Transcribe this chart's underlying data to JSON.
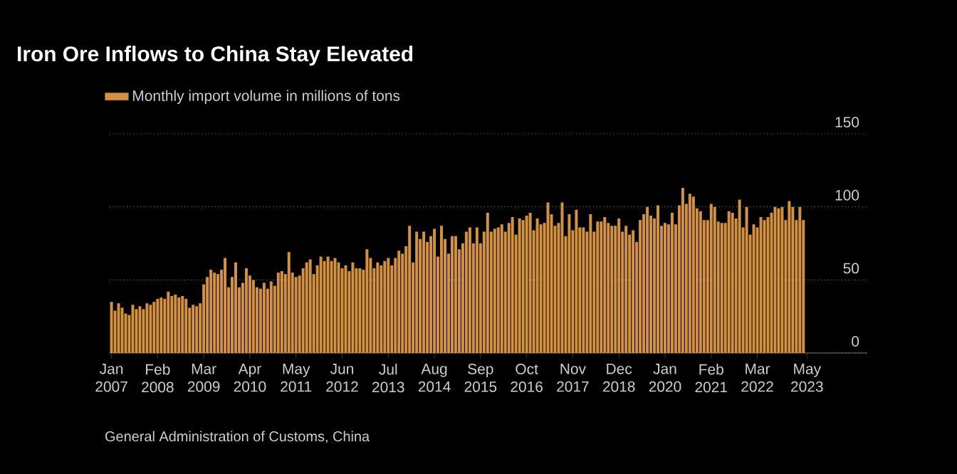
{
  "chart_data": {
    "type": "bar",
    "title": "Iron Ore Inflows to China Stay Elevated",
    "annotations": [
      "General Administration of Customs, China"
    ],
    "x": [
      "2007-01",
      "2007-02",
      "2007-03",
      "2007-04",
      "2007-05",
      "2007-06",
      "2007-07",
      "2007-08",
      "2007-09",
      "2007-10",
      "2007-11",
      "2007-12",
      "2008-01",
      "2008-02",
      "2008-03",
      "2008-04",
      "2008-05",
      "2008-06",
      "2008-07",
      "2008-08",
      "2008-09",
      "2008-10",
      "2008-11",
      "2008-12",
      "2009-01",
      "2009-02",
      "2009-03",
      "2009-04",
      "2009-05",
      "2009-06",
      "2009-07",
      "2009-08",
      "2009-09",
      "2009-10",
      "2009-11",
      "2009-12",
      "2010-01",
      "2010-02",
      "2010-03",
      "2010-04",
      "2010-05",
      "2010-06",
      "2010-07",
      "2010-08",
      "2010-09",
      "2010-10",
      "2010-11",
      "2010-12",
      "2011-01",
      "2011-02",
      "2011-03",
      "2011-04",
      "2011-05",
      "2011-06",
      "2011-07",
      "2011-08",
      "2011-09",
      "2011-10",
      "2011-11",
      "2011-12",
      "2012-01",
      "2012-02",
      "2012-03",
      "2012-04",
      "2012-05",
      "2012-06",
      "2012-07",
      "2012-08",
      "2012-09",
      "2012-10",
      "2012-11",
      "2012-12",
      "2013-01",
      "2013-02",
      "2013-03",
      "2013-04",
      "2013-05",
      "2013-06",
      "2013-07",
      "2013-08",
      "2013-09",
      "2013-10",
      "2013-11",
      "2013-12",
      "2014-01",
      "2014-02",
      "2014-03",
      "2014-04",
      "2014-05",
      "2014-06",
      "2014-07",
      "2014-08",
      "2014-09",
      "2014-10",
      "2014-11",
      "2014-12",
      "2015-01",
      "2015-02",
      "2015-03",
      "2015-04",
      "2015-05",
      "2015-06",
      "2015-07",
      "2015-08",
      "2015-09",
      "2015-10",
      "2015-11",
      "2015-12",
      "2016-01",
      "2016-02",
      "2016-03",
      "2016-04",
      "2016-05",
      "2016-06",
      "2016-07",
      "2016-08",
      "2016-09",
      "2016-10",
      "2016-11",
      "2016-12",
      "2017-01",
      "2017-02",
      "2017-03",
      "2017-04",
      "2017-05",
      "2017-06",
      "2017-07",
      "2017-08",
      "2017-09",
      "2017-10",
      "2017-11",
      "2017-12",
      "2018-01",
      "2018-02",
      "2018-03",
      "2018-04",
      "2018-05",
      "2018-06",
      "2018-07",
      "2018-08",
      "2018-09",
      "2018-10",
      "2018-11",
      "2018-12",
      "2019-01",
      "2019-02",
      "2019-03",
      "2019-04",
      "2019-05",
      "2019-06",
      "2019-07",
      "2019-08",
      "2019-09",
      "2019-10",
      "2019-11",
      "2019-12",
      "2020-01",
      "2020-02",
      "2020-03",
      "2020-04",
      "2020-05",
      "2020-06",
      "2020-07",
      "2020-08",
      "2020-09",
      "2020-10",
      "2020-11",
      "2020-12",
      "2021-01",
      "2021-02",
      "2021-03",
      "2021-04",
      "2021-05",
      "2021-06",
      "2021-07",
      "2021-08",
      "2021-09",
      "2021-10",
      "2021-11",
      "2021-12",
      "2022-01",
      "2022-02",
      "2022-03",
      "2022-04",
      "2022-05",
      "2022-06",
      "2022-07",
      "2022-08",
      "2022-09",
      "2022-10",
      "2022-11",
      "2022-12",
      "2023-01",
      "2023-02",
      "2023-03",
      "2023-04"
    ],
    "series": [
      {
        "name": "Monthly import volume in millions of tons",
        "color": "#d4913f",
        "values": [
          35,
          29,
          34,
          31,
          27,
          26,
          33,
          30,
          32,
          30,
          34,
          33,
          35,
          37,
          38,
          37,
          42,
          39,
          40,
          38,
          39,
          37,
          31,
          33,
          32,
          34,
          47,
          52,
          57,
          55,
          54,
          57,
          65,
          45,
          52,
          62,
          45,
          48,
          58,
          53,
          50,
          45,
          44,
          48,
          44,
          49,
          46,
          55,
          56,
          54,
          69,
          55,
          52,
          53,
          58,
          62,
          64,
          54,
          60,
          66,
          63,
          66,
          63,
          65,
          62,
          58,
          60,
          56,
          62,
          58,
          58,
          57,
          71,
          65,
          58,
          62,
          60,
          63,
          65,
          60,
          65,
          70,
          68,
          73,
          87,
          62,
          83,
          78,
          83,
          76,
          80,
          85,
          66,
          87,
          78,
          68,
          80,
          80,
          71,
          75,
          83,
          86,
          75,
          86,
          75,
          83,
          96,
          83,
          85,
          86,
          88,
          83,
          89,
          93,
          81,
          92,
          91,
          94,
          96,
          84,
          92,
          88,
          89,
          103,
          95,
          87,
          89,
          103,
          80,
          95,
          84,
          98,
          86,
          86,
          83,
          95,
          83,
          90,
          90,
          93,
          89,
          87,
          87,
          92,
          83,
          87,
          81,
          84,
          76,
          91,
          95,
          100,
          94,
          92,
          101,
          87,
          89,
          88,
          96,
          88,
          101,
          113,
          102,
          109,
          107,
          99,
          97,
          91,
          91,
          102,
          100,
          90,
          89,
          89,
          97,
          96,
          92,
          105,
          86,
          100,
          81,
          88,
          86,
          93,
          91,
          93,
          96,
          100,
          99,
          100,
          91,
          104,
          100,
          91,
          100,
          91
        ]
      }
    ],
    "xlim": [
      "2006-12-16",
      "2024-10"
    ],
    "xticks": [
      {
        "value": "2007-01",
        "label": "Jan 2007"
      },
      {
        "value": "2008-02",
        "label": "Feb 2008"
      },
      {
        "value": "2009-03",
        "label": "Mar 2009"
      },
      {
        "value": "2010-04",
        "label": "Apr 2010"
      },
      {
        "value": "2011-05",
        "label": "May 2011"
      },
      {
        "value": "2012-06",
        "label": "Jun 2012"
      },
      {
        "value": "2013-07",
        "label": "Jul 2013"
      },
      {
        "value": "2014-08",
        "label": "Aug 2014"
      },
      {
        "value": "2015-09",
        "label": "Sep 2015"
      },
      {
        "value": "2016-10",
        "label": "Oct 2016"
      },
      {
        "value": "2017-11",
        "label": "Nov 2017"
      },
      {
        "value": "2018-12",
        "label": "Dec 2018"
      },
      {
        "value": "2020-01",
        "label": "Jan 2020"
      },
      {
        "value": "2021-02",
        "label": "Feb 2021"
      },
      {
        "value": "2022-03",
        "label": "Mar 2022"
      },
      {
        "value": "2023-05",
        "label": "May 2023"
      }
    ],
    "ylim": [
      0,
      150
    ],
    "yticks": [
      0,
      50,
      100,
      150
    ],
    "grid": "y",
    "legend": "top left"
  }
}
